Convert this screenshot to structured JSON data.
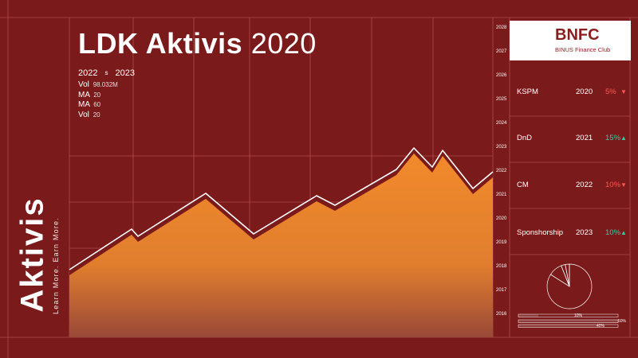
{
  "title": {
    "bold": "LDK Aktivis",
    "light": "2020"
  },
  "range": {
    "start": "2022",
    "separator": "s",
    "end": "2023"
  },
  "stats": [
    {
      "label": "Vol",
      "value": "98.032M"
    },
    {
      "label": "MA",
      "value": "20"
    },
    {
      "label": "MA",
      "value": "60"
    },
    {
      "label": "Vol",
      "value": "20"
    }
  ],
  "side": {
    "title": "Aktivis",
    "tagline": "Learn More. Earn More."
  },
  "logo": {
    "name": "BNFC",
    "subtitle": "BINUS Finance Club"
  },
  "rows": [
    {
      "name": "KSPM",
      "year": "2020",
      "pct": "5%",
      "direction": "down"
    },
    {
      "name": "DnD",
      "year": "2021",
      "pct": "15%",
      "direction": "up"
    },
    {
      "name": "CM",
      "year": "2022",
      "pct": "10%",
      "direction": "down"
    },
    {
      "name": "Sponshorship",
      "year": "2023",
      "pct": "10%",
      "direction": "up"
    }
  ],
  "colors": {
    "background": "#7a1a1a",
    "area_top": "#f0862a",
    "area_bottom": "#a04a3a",
    "line": "#ffffff",
    "grid": "#b04a4a",
    "down": "#ff5a52",
    "up": "#3ec9a3"
  },
  "chart_data": [
    {
      "type": "area",
      "y_tick_labels": [
        "2016",
        "2017",
        "2018",
        "2019",
        "2020",
        "2021",
        "2022",
        "2023",
        "2024",
        "2025",
        "2026",
        "2027",
        "2028"
      ],
      "ylim": [
        2016,
        2028
      ],
      "series": [
        {
          "values": [
            2017.9,
            2019.6,
            2019.3,
            2021.1,
            2019.4,
            2021.0,
            2020.6,
            2022.1,
            2023.0,
            2022.2,
            2022.9,
            2021.3,
            2022.0
          ]
        }
      ],
      "grid": true
    },
    {
      "type": "pie",
      "values": [
        84,
        10,
        3,
        3
      ]
    },
    {
      "type": "bar",
      "orientation": "horizontal",
      "data_labels": [
        "10%",
        "50%",
        "40%"
      ],
      "values": [
        10,
        50,
        40
      ]
    }
  ]
}
